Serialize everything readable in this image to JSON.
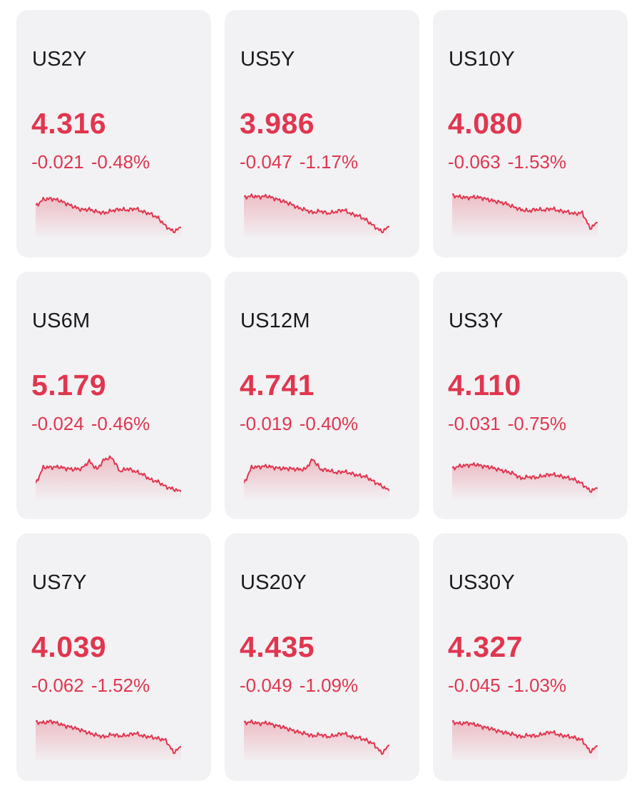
{
  "colors": {
    "card_bg": "#f2f2f4",
    "down": "#e0364f",
    "text": "#1a1a1a"
  },
  "instruments": [
    {
      "symbol": "US2Y",
      "price": "4.316",
      "change": "-0.021",
      "change_pct": "-0.48%",
      "trend": "down",
      "spark": [
        0.64,
        0.8,
        0.82,
        0.78,
        0.7,
        0.62,
        0.55,
        0.56,
        0.5,
        0.47,
        0.53,
        0.56,
        0.54,
        0.58,
        0.5,
        0.45,
        0.35,
        0.15,
        0.02,
        0.12
      ]
    },
    {
      "symbol": "US5Y",
      "price": "3.986",
      "change": "-0.047",
      "change_pct": "-1.17%",
      "trend": "down",
      "spark": [
        0.85,
        0.88,
        0.86,
        0.88,
        0.82,
        0.76,
        0.7,
        0.6,
        0.55,
        0.48,
        0.52,
        0.46,
        0.5,
        0.55,
        0.45,
        0.4,
        0.3,
        0.15,
        0.02,
        0.14
      ]
    },
    {
      "symbol": "US10Y",
      "price": "4.080",
      "change": "-0.063",
      "change_pct": "-1.53%",
      "trend": "down",
      "spark": [
        0.9,
        0.86,
        0.84,
        0.86,
        0.83,
        0.78,
        0.74,
        0.7,
        0.62,
        0.55,
        0.52,
        0.56,
        0.54,
        0.58,
        0.52,
        0.5,
        0.45,
        0.48,
        0.1,
        0.24
      ]
    },
    {
      "symbol": "US6M",
      "price": "5.179",
      "change": "-0.024",
      "change_pct": "-0.46%",
      "trend": "down",
      "spark": [
        0.25,
        0.65,
        0.65,
        0.66,
        0.62,
        0.6,
        0.62,
        0.8,
        0.6,
        0.85,
        0.88,
        0.55,
        0.62,
        0.55,
        0.48,
        0.35,
        0.3,
        0.18,
        0.12,
        0.06
      ]
    },
    {
      "symbol": "US12M",
      "price": "4.741",
      "change": "-0.019",
      "change_pct": "-0.40%",
      "trend": "down",
      "spark": [
        0.25,
        0.65,
        0.66,
        0.68,
        0.64,
        0.62,
        0.62,
        0.6,
        0.6,
        0.85,
        0.6,
        0.58,
        0.52,
        0.55,
        0.5,
        0.45,
        0.42,
        0.3,
        0.2,
        0.08
      ]
    },
    {
      "symbol": "US3Y",
      "price": "4.110",
      "change": "-0.031",
      "change_pct": "-0.75%",
      "trend": "down",
      "spark": [
        0.62,
        0.68,
        0.7,
        0.72,
        0.68,
        0.65,
        0.6,
        0.55,
        0.5,
        0.38,
        0.42,
        0.4,
        0.45,
        0.48,
        0.44,
        0.4,
        0.35,
        0.25,
        0.08,
        0.14
      ]
    },
    {
      "symbol": "US7Y",
      "price": "4.039",
      "change": "-0.062",
      "change_pct": "-1.52%",
      "trend": "down",
      "spark": [
        0.82,
        0.8,
        0.84,
        0.78,
        0.72,
        0.68,
        0.62,
        0.55,
        0.5,
        0.46,
        0.52,
        0.48,
        0.5,
        0.55,
        0.48,
        0.46,
        0.42,
        0.38,
        0.08,
        0.22
      ]
    },
    {
      "symbol": "US20Y",
      "price": "4.435",
      "change": "-0.049",
      "change_pct": "-1.09%",
      "trend": "down",
      "spark": [
        0.8,
        0.82,
        0.78,
        0.8,
        0.74,
        0.7,
        0.64,
        0.58,
        0.54,
        0.48,
        0.52,
        0.46,
        0.5,
        0.55,
        0.46,
        0.44,
        0.38,
        0.28,
        0.06,
        0.26
      ]
    },
    {
      "symbol": "US30Y",
      "price": "4.327",
      "change": "-0.045",
      "change_pct": "-1.03%",
      "trend": "down",
      "spark": [
        0.82,
        0.78,
        0.8,
        0.76,
        0.7,
        0.66,
        0.6,
        0.56,
        0.52,
        0.46,
        0.5,
        0.48,
        0.54,
        0.58,
        0.5,
        0.48,
        0.44,
        0.38,
        0.1,
        0.24
      ]
    }
  ]
}
